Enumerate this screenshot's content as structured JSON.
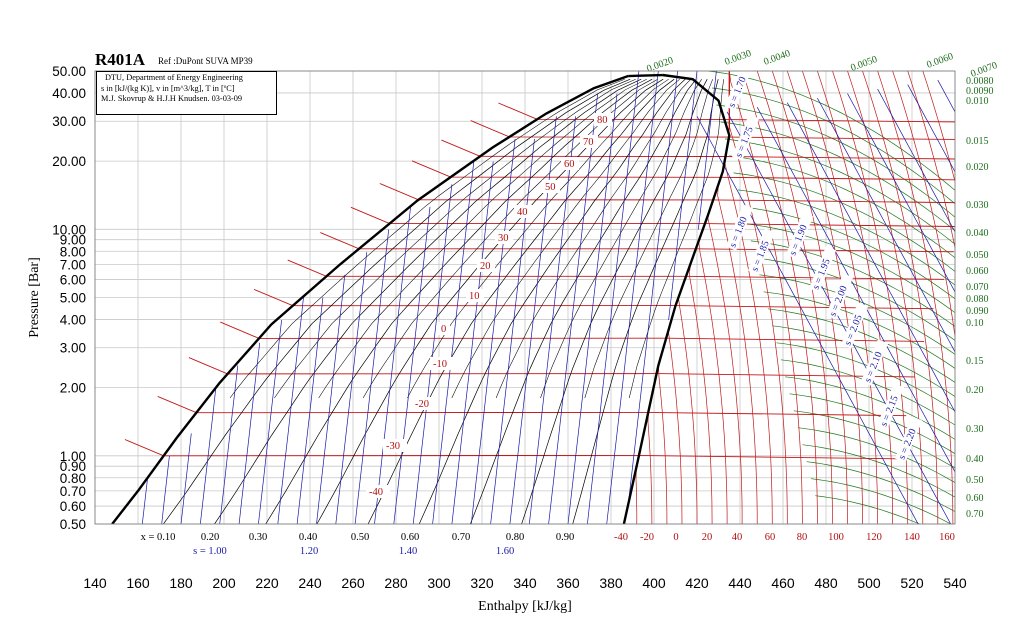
{
  "chart_data": {
    "type": "line",
    "title": "R401A",
    "subtitle": "Ref :DuPont SUVA MP39",
    "info_lines": [
      "DTU, Department of Energy Engineering",
      "s in [kJ/(kg K)], v in [m^3/kg], T in [ºC]",
      "M.J. Skovrup & H.J.H Knudsen. 03-03-09"
    ],
    "xlabel": "Enthalpy [kJ/kg]",
    "ylabel": "Pressure [Bar]",
    "x_scale": "linear",
    "y_scale": "log",
    "xlim": [
      140,
      540
    ],
    "ylim": [
      0.5,
      50
    ],
    "x_ticks": [
      "140",
      "160",
      "180",
      "200",
      "220",
      "240",
      "260",
      "280",
      "300",
      "320",
      "340",
      "360",
      "380",
      "400",
      "420",
      "440",
      "460",
      "480",
      "500",
      "520",
      "540"
    ],
    "y_ticks": [
      0.5,
      0.6,
      0.7,
      0.8,
      0.9,
      1,
      2,
      3,
      4,
      5,
      6,
      7,
      8,
      9,
      10,
      20,
      30,
      40,
      50
    ],
    "y_tick_labels": [
      "0.50",
      "0.60",
      "0.70",
      "0.80",
      "0.90",
      "1.00",
      "2.00",
      "3.00",
      "4.00",
      "5.00",
      "6.00",
      "7.00",
      "8.00",
      "9.00",
      "10.00",
      "20.00",
      "30.00",
      "40.00",
      "50.00"
    ],
    "saturation_dome": {
      "liquid": [
        [
          148,
          0.5
        ],
        [
          160,
          0.7
        ],
        [
          178,
          1.2
        ],
        [
          198,
          2.1
        ],
        [
          222,
          3.8
        ],
        [
          254,
          7.0
        ],
        [
          290,
          13.4
        ],
        [
          325,
          23.0
        ],
        [
          350,
          32.5
        ],
        [
          372,
          42.0
        ],
        [
          388,
          47.5
        ]
      ],
      "vapor": [
        [
          386,
          0.5
        ],
        [
          393,
          1.0
        ],
        [
          402,
          2.5
        ],
        [
          410,
          4.6
        ],
        [
          418,
          7.5
        ],
        [
          425,
          11.5
        ],
        [
          432,
          18.0
        ],
        [
          435,
          26.0
        ],
        [
          430,
          37.0
        ],
        [
          418,
          46.0
        ],
        [
          404,
          48.0
        ]
      ]
    },
    "quality_labels": [
      "x = 0.10",
      "0.20",
      "0.30",
      "0.40",
      "0.50",
      "0.60",
      "0.70",
      "0.80",
      "0.90"
    ],
    "quality_values": [
      0.1,
      0.2,
      0.3,
      0.4,
      0.5,
      0.6,
      0.7,
      0.8,
      0.9
    ],
    "entropy_bottom_labels": [
      "s = 1.00",
      "1.20",
      "1.40",
      "1.60"
    ],
    "entropy_vapor_labels": [
      "s = 1.70",
      "s = 1.75",
      "s = 1.80",
      "s = 1.85",
      "s = 1.90",
      "s = 1.95",
      "s = 2.00",
      "s = 2.05",
      "s = 2.10",
      "s = 2.15",
      "s = 2.20"
    ],
    "isotherms_dome": [
      {
        "label": "80",
        "T": 80,
        "p": 30.6
      },
      {
        "label": "70",
        "T": 70,
        "p": 25.6
      },
      {
        "label": "60",
        "T": 60,
        "p": 21.0
      },
      {
        "label": "50",
        "T": 50,
        "p": 17.0
      },
      {
        "label": "40",
        "T": 40,
        "p": 13.5
      },
      {
        "label": "30",
        "T": 30,
        "p": 10.6
      },
      {
        "label": "20",
        "T": 20,
        "p": 8.2
      },
      {
        "label": "10",
        "T": 10,
        "p": 6.2
      },
      {
        "label": "0",
        "T": 0,
        "p": 4.6
      },
      {
        "label": "-10",
        "T": -10,
        "p": 3.3
      },
      {
        "label": "-20",
        "T": -20,
        "p": 2.3
      },
      {
        "label": "-30",
        "T": -30,
        "p": 1.55
      },
      {
        "label": "-40",
        "T": -40,
        "p": 1.0
      }
    ],
    "temperature_bottom_labels": [
      "-40",
      "-20",
      "0",
      "20",
      "40",
      "60",
      "80",
      "100",
      "120",
      "140",
      "160"
    ],
    "volume_top_labels": [
      "0.0020",
      "0.0030",
      "0.0040",
      "0.0050",
      "0.0060",
      "0.0070"
    ],
    "volume_right_labels": [
      "0.0080",
      "0.0090",
      "0.010",
      "0.015",
      "0.020",
      "0.030",
      "0.040",
      "0.050",
      "0.060",
      "0.070",
      "0.080",
      "0.090",
      "0.10",
      "0.15",
      "0.20",
      "0.30",
      "0.40",
      "0.50",
      "0.60",
      "0.70"
    ],
    "colors": {
      "grid": "#c8c8c8",
      "dome": "#000000",
      "quality": "#000000",
      "entropy": "#1a1aa8",
      "isotherm": "#c21818",
      "isochore": "#1e7a1e",
      "temp_label": "#b01010",
      "vol_label": "#1e6e1e",
      "entropy_label": "#1a1aa8"
    }
  }
}
